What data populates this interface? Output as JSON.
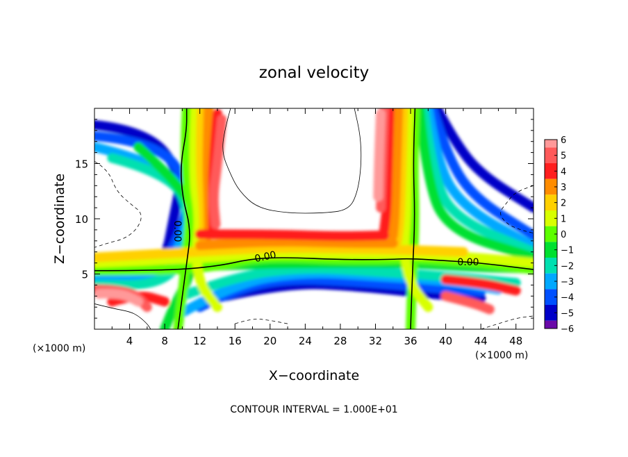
{
  "chart_data": {
    "type": "heatmap",
    "title": "zonal velocity",
    "xlabel": "X−coordinate",
    "ylabel": "Z−coordinate",
    "x_unit_left": "(×1000 m)",
    "x_unit_right": "(×1000 m)",
    "footer": "CONTOUR INTERVAL = 1.000E+01",
    "xlim": [
      0,
      50
    ],
    "ylim": [
      0,
      20
    ],
    "x_ticks": [
      4,
      8,
      12,
      16,
      20,
      24,
      28,
      32,
      36,
      40,
      44,
      48
    ],
    "y_ticks": [
      5,
      10,
      15
    ],
    "colorbar": {
      "labels": [
        "6",
        "5",
        "4",
        "3",
        "2",
        "1",
        "0",
        "−1",
        "−2",
        "−3",
        "−4",
        "−5",
        "−6"
      ],
      "colors": [
        "#ff9999",
        "#ff5a5a",
        "#ff1e1e",
        "#ff8c00",
        "#ffd000",
        "#d8ff00",
        "#5cff00",
        "#00e030",
        "#00e0b0",
        "#00a8ff",
        "#0050ff",
        "#0000c8",
        "#6a0aa8"
      ],
      "range": [
        -6,
        6
      ]
    },
    "contour_labels": [
      "0.00",
      "0.00",
      "0.00"
    ],
    "zero_lines": [
      [
        [
          9.5,
          0
        ],
        [
          10,
          3
        ],
        [
          10.5,
          6
        ],
        [
          11,
          9
        ],
        [
          10,
          12
        ],
        [
          9.8,
          15
        ],
        [
          10.5,
          18
        ],
        [
          10.5,
          20
        ]
      ],
      [
        [
          0,
          5.3
        ],
        [
          8,
          5.3
        ],
        [
          14,
          5.7
        ],
        [
          18,
          6.4
        ],
        [
          22,
          6.5
        ],
        [
          28,
          6.3
        ],
        [
          33,
          6.3
        ],
        [
          36,
          6.4
        ],
        [
          40,
          6.2
        ],
        [
          44,
          6.0
        ],
        [
          50,
          5.4
        ]
      ],
      [
        [
          36,
          0
        ],
        [
          36.2,
          5
        ],
        [
          36.5,
          10
        ],
        [
          36.3,
          15
        ],
        [
          36.5,
          20
        ]
      ]
    ],
    "wind_bands": [
      {
        "value": -5,
        "points": [
          [
            0,
            18.5
          ],
          [
            6,
            18
          ],
          [
            10,
            14
          ],
          [
            9,
            10
          ],
          [
            8,
            6
          ],
          [
            4,
            5
          ],
          [
            0,
            5
          ]
        ]
      },
      {
        "value": -5,
        "points": [
          [
            39,
            20
          ],
          [
            41,
            17
          ],
          [
            44,
            14
          ],
          [
            50,
            11
          ]
        ]
      },
      {
        "value": -5,
        "points": [
          [
            15,
            3
          ],
          [
            22,
            4.2
          ],
          [
            30,
            3.9
          ],
          [
            38,
            3.2
          ],
          [
            44,
            2.8
          ]
        ]
      },
      {
        "value": -4,
        "points": [
          [
            0,
            17.5
          ],
          [
            7,
            17
          ],
          [
            11,
            13
          ],
          [
            10,
            9
          ],
          [
            8,
            6
          ],
          [
            4,
            4.8
          ],
          [
            0,
            4.8
          ]
        ]
      },
      {
        "value": -4,
        "points": [
          [
            38.5,
            20
          ],
          [
            40,
            16
          ],
          [
            43,
            12
          ],
          [
            50,
            8.5
          ]
        ]
      },
      {
        "value": -4,
        "points": [
          [
            12,
            2
          ],
          [
            16,
            3.6
          ],
          [
            22,
            4.6
          ],
          [
            30,
            4.3
          ],
          [
            38,
            3.8
          ],
          [
            44,
            3.4
          ]
        ]
      },
      {
        "value": -3,
        "points": [
          [
            0,
            16.5
          ],
          [
            8,
            15
          ],
          [
            11,
            11
          ],
          [
            10,
            8
          ],
          [
            8,
            5
          ],
          [
            0,
            4.5
          ]
        ]
      },
      {
        "value": -3,
        "points": [
          [
            38,
            20
          ],
          [
            39,
            15
          ],
          [
            42,
            11
          ],
          [
            50,
            7.5
          ]
        ]
      },
      {
        "value": -3,
        "points": [
          [
            10,
            1.5
          ],
          [
            16,
            4.2
          ],
          [
            24,
            5.2
          ],
          [
            32,
            4.8
          ],
          [
            40,
            4.4
          ],
          [
            46,
            3.6
          ]
        ]
      },
      {
        "value": -2,
        "points": [
          [
            2,
            15.5
          ],
          [
            9,
            14
          ],
          [
            11,
            10
          ],
          [
            10,
            6
          ],
          [
            7,
            4
          ],
          [
            0,
            4
          ]
        ]
      },
      {
        "value": -2,
        "points": [
          [
            37.5,
            20
          ],
          [
            38.5,
            14
          ],
          [
            41,
            10
          ],
          [
            50,
            7
          ]
        ]
      },
      {
        "value": -2,
        "points": [
          [
            10,
            3
          ],
          [
            16,
            4.8
          ],
          [
            24,
            5.6
          ],
          [
            32,
            5.2
          ],
          [
            40,
            4.8
          ],
          [
            48,
            4.2
          ]
        ]
      },
      {
        "value": -1,
        "points": [
          [
            5,
            16.5
          ],
          [
            10,
            13
          ],
          [
            12,
            9
          ],
          [
            11,
            5
          ],
          [
            9,
            2
          ],
          [
            8,
            0
          ]
        ]
      },
      {
        "value": -1,
        "points": [
          [
            37,
            20
          ],
          [
            37.8,
            14
          ],
          [
            40,
            9
          ],
          [
            50,
            6.5
          ]
        ]
      },
      {
        "value": -1,
        "points": [
          [
            0,
            5.6
          ],
          [
            10,
            5.6
          ],
          [
            18,
            5.9
          ],
          [
            28,
            6
          ],
          [
            36,
            6
          ],
          [
            44,
            5.6
          ],
          [
            50,
            5.5
          ]
        ]
      },
      {
        "value": 0,
        "points": [
          [
            10.5,
            20
          ],
          [
            10.2,
            15
          ],
          [
            11,
            11
          ],
          [
            10.5,
            7
          ],
          [
            10,
            3
          ],
          [
            9.5,
            0
          ]
        ]
      },
      {
        "value": 0,
        "points": [
          [
            36.5,
            20
          ],
          [
            36.3,
            15
          ],
          [
            36.5,
            10
          ],
          [
            36.2,
            5
          ],
          [
            36,
            0
          ]
        ]
      },
      {
        "value": 0,
        "points": [
          [
            0,
            5.3
          ],
          [
            8,
            5.3
          ],
          [
            14,
            5.7
          ],
          [
            18,
            6.4
          ],
          [
            22,
            6.5
          ],
          [
            28,
            6.3
          ],
          [
            33,
            6.3
          ],
          [
            36,
            6.4
          ],
          [
            40,
            6.2
          ],
          [
            44,
            6
          ],
          [
            50,
            5.4
          ]
        ]
      },
      {
        "value": 1,
        "points": [
          [
            11.5,
            20
          ],
          [
            11.2,
            14
          ],
          [
            12,
            10
          ],
          [
            11.5,
            7
          ],
          [
            12,
            4
          ],
          [
            14,
            2
          ]
        ]
      },
      {
        "value": 1,
        "points": [
          [
            35.8,
            20
          ],
          [
            35.6,
            14
          ],
          [
            35.5,
            10
          ],
          [
            35.2,
            7
          ],
          [
            36,
            4
          ],
          [
            38,
            2
          ]
        ]
      },
      {
        "value": 1,
        "points": [
          [
            0,
            6
          ],
          [
            12,
            6.4
          ],
          [
            20,
            6.9
          ],
          [
            28,
            6.8
          ],
          [
            35,
            6.8
          ],
          [
            42,
            6.6
          ],
          [
            50,
            6
          ]
        ]
      },
      {
        "value": 2,
        "points": [
          [
            12.2,
            20
          ],
          [
            12,
            15
          ],
          [
            12.5,
            10.5
          ],
          [
            12.4,
            8
          ]
        ]
      },
      {
        "value": 2,
        "points": [
          [
            35.2,
            20
          ],
          [
            35,
            15
          ],
          [
            34.8,
            10
          ],
          [
            34.5,
            8
          ]
        ]
      },
      {
        "value": 2,
        "points": [
          [
            0,
            6.5
          ],
          [
            12,
            7
          ],
          [
            20,
            7.4
          ],
          [
            28,
            7.3
          ],
          [
            35,
            7.2
          ],
          [
            42,
            7
          ]
        ]
      },
      {
        "value": 3,
        "points": [
          [
            13,
            20
          ],
          [
            12.8,
            15
          ],
          [
            13,
            11
          ],
          [
            13,
            8.5
          ]
        ]
      },
      {
        "value": 3,
        "points": [
          [
            34.6,
            20
          ],
          [
            34.4,
            15
          ],
          [
            34.2,
            10
          ],
          [
            34,
            8.5
          ]
        ]
      },
      {
        "value": 3,
        "points": [
          [
            12,
            7.6
          ],
          [
            20,
            8
          ],
          [
            28,
            7.8
          ],
          [
            34,
            7.8
          ]
        ]
      },
      {
        "value": 4,
        "points": [
          [
            14,
            19.5
          ],
          [
            13.5,
            15
          ],
          [
            13.5,
            11.5
          ],
          [
            13.5,
            9
          ]
        ]
      },
      {
        "value": 4,
        "points": [
          [
            33.6,
            20
          ],
          [
            33.4,
            15
          ],
          [
            33.3,
            11
          ],
          [
            33,
            9
          ]
        ]
      },
      {
        "value": 4,
        "points": [
          [
            12,
            8.6
          ],
          [
            20,
            8.6
          ],
          [
            28,
            8.4
          ],
          [
            33,
            8.5
          ]
        ]
      },
      {
        "value": 4,
        "points": [
          [
            2,
            2.5
          ],
          [
            5,
            3.2
          ],
          [
            8,
            2.5
          ]
        ]
      },
      {
        "value": 4,
        "points": [
          [
            40,
            4.5
          ],
          [
            44,
            4.2
          ],
          [
            48,
            3.5
          ]
        ]
      },
      {
        "value": 5,
        "points": [
          [
            14.5,
            19
          ],
          [
            14,
            15
          ],
          [
            13.5,
            12
          ],
          [
            13.8,
            9.5
          ]
        ]
      },
      {
        "value": 5,
        "points": [
          [
            33,
            20
          ],
          [
            32.8,
            15
          ],
          [
            32.6,
            11
          ]
        ]
      },
      {
        "value": 5,
        "points": [
          [
            0,
            3.6
          ],
          [
            4,
            3.6
          ],
          [
            6,
            2
          ]
        ]
      },
      {
        "value": 5,
        "points": [
          [
            40,
            3
          ],
          [
            43,
            2.4
          ],
          [
            45,
            1.8
          ]
        ]
      },
      {
        "value": 6,
        "points": [
          [
            32.6,
            19.5
          ],
          [
            32.4,
            15.5
          ],
          [
            32.3,
            12
          ]
        ]
      },
      {
        "value": 6,
        "points": [
          [
            0.5,
            3.2
          ],
          [
            3,
            3.3
          ],
          [
            5,
            2.5
          ]
        ]
      }
    ],
    "thin_contours_solid": [
      [
        [
          15.5,
          20
        ],
        [
          14.8,
          18
        ],
        [
          14.5,
          16
        ],
        [
          15.5,
          14
        ],
        [
          16.5,
          12.5
        ],
        [
          18.5,
          11
        ],
        [
          22,
          10.5
        ],
        [
          26,
          10.5
        ],
        [
          29,
          10.8
        ],
        [
          30,
          12.5
        ],
        [
          30.4,
          15
        ],
        [
          30.3,
          17.5
        ],
        [
          29.6,
          20
        ]
      ],
      [
        [
          0,
          2.3
        ],
        [
          2,
          1.9
        ],
        [
          4,
          1.6
        ],
        [
          5,
          1.2
        ],
        [
          6,
          0.5
        ],
        [
          6.4,
          0
        ]
      ]
    ],
    "thin_contours_dashed": [
      [
        [
          0,
          15.2
        ],
        [
          1.5,
          14.5
        ],
        [
          2.5,
          12.5
        ],
        [
          4,
          11.4
        ],
        [
          5.5,
          10.5
        ],
        [
          5,
          9.2
        ],
        [
          3.5,
          8.2
        ],
        [
          1.5,
          7.8
        ],
        [
          0,
          7.4
        ]
      ],
      [
        [
          50,
          13
        ],
        [
          48,
          12.5
        ],
        [
          47,
          11.5
        ],
        [
          46,
          10.5
        ],
        [
          47,
          9.5
        ],
        [
          48.5,
          9
        ],
        [
          50,
          8.7
        ]
      ],
      [
        [
          16,
          0.5
        ],
        [
          18,
          1
        ],
        [
          20,
          0.8
        ],
        [
          22,
          0.5
        ]
      ],
      [
        [
          44,
          0
        ],
        [
          46,
          0.5
        ],
        [
          48,
          1
        ],
        [
          50,
          1.2
        ]
      ]
    ]
  }
}
